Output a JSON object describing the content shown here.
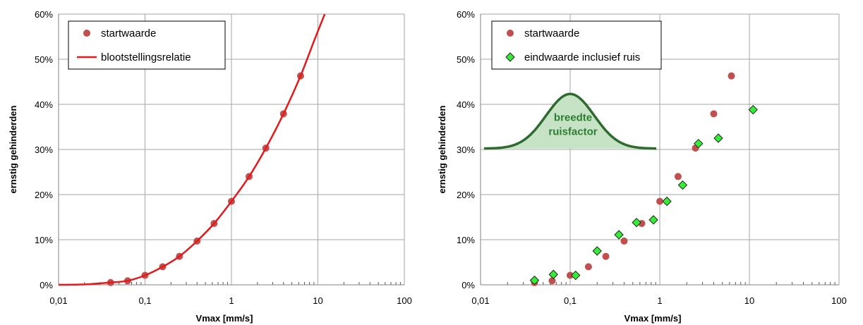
{
  "colors": {
    "startwaarde": "#c0504d",
    "curve": "#e31a1c",
    "eindwaarde": "#33ee33",
    "grid": "#a6a6a6",
    "bell_fill": "#c6e3c6",
    "bell_stroke": "#2e6b2e"
  },
  "chart_data": [
    {
      "type": "scatter",
      "xscale": "log",
      "xlim": [
        0.01,
        100
      ],
      "ylim": [
        0,
        0.6
      ],
      "xlabel": "Vmax [mm/s]",
      "ylabel": "ernstig gehinderden",
      "x_ticks": [
        "0,01",
        "0,1",
        "1",
        "10",
        "100"
      ],
      "y_ticks": [
        "0%",
        "10%",
        "20%",
        "30%",
        "40%",
        "50%",
        "60%"
      ],
      "grid": true,
      "legend_position": "top-left",
      "legend": [
        "startwaarde",
        "blootstellingsrelatie"
      ],
      "series": [
        {
          "name": "startwaarde",
          "marker": "circle",
          "points": [
            {
              "x": 0.04,
              "y": 0.005
            },
            {
              "x": 0.063,
              "y": 0.009
            },
            {
              "x": 0.1,
              "y": 0.021
            },
            {
              "x": 0.16,
              "y": 0.04
            },
            {
              "x": 0.25,
              "y": 0.063
            },
            {
              "x": 0.4,
              "y": 0.097
            },
            {
              "x": 0.63,
              "y": 0.136
            },
            {
              "x": 1.0,
              "y": 0.185
            },
            {
              "x": 1.6,
              "y": 0.24
            },
            {
              "x": 2.5,
              "y": 0.303
            },
            {
              "x": 4.0,
              "y": 0.379
            },
            {
              "x": 6.3,
              "y": 0.463
            }
          ]
        },
        {
          "name": "blootstellingsrelatie",
          "marker": "line",
          "points": [
            {
              "x": 0.01,
              "y": 0.0
            },
            {
              "x": 0.02,
              "y": 0.001
            },
            {
              "x": 0.04,
              "y": 0.005
            },
            {
              "x": 0.063,
              "y": 0.009
            },
            {
              "x": 0.1,
              "y": 0.021
            },
            {
              "x": 0.16,
              "y": 0.04
            },
            {
              "x": 0.25,
              "y": 0.063
            },
            {
              "x": 0.4,
              "y": 0.097
            },
            {
              "x": 0.63,
              "y": 0.136
            },
            {
              "x": 1.0,
              "y": 0.185
            },
            {
              "x": 1.6,
              "y": 0.24
            },
            {
              "x": 2.5,
              "y": 0.303
            },
            {
              "x": 4.0,
              "y": 0.379
            },
            {
              "x": 6.3,
              "y": 0.463
            },
            {
              "x": 9.0,
              "y": 0.54
            },
            {
              "x": 12.0,
              "y": 0.6
            }
          ]
        }
      ]
    },
    {
      "type": "scatter",
      "xscale": "log",
      "xlim": [
        0.01,
        100
      ],
      "ylim": [
        0,
        0.6
      ],
      "xlabel": "Vmax [mm/s]",
      "ylabel": "ernstig gehinderden",
      "x_ticks": [
        "0,01",
        "0,1",
        "1",
        "10",
        "100"
      ],
      "y_ticks": [
        "0%",
        "10%",
        "20%",
        "30%",
        "40%",
        "50%",
        "60%"
      ],
      "grid": true,
      "legend_position": "top-left",
      "legend": [
        "startwaarde",
        "eindwaarde inclusief ruis"
      ],
      "annotation": {
        "lines": [
          "breedte",
          "ruisfactor"
        ],
        "center_x": 0.1,
        "base_y": 0.302,
        "peak_y": 0.423
      },
      "series": [
        {
          "name": "startwaarde",
          "marker": "circle",
          "points": [
            {
              "x": 0.04,
              "y": 0.005
            },
            {
              "x": 0.063,
              "y": 0.009
            },
            {
              "x": 0.1,
              "y": 0.021
            },
            {
              "x": 0.16,
              "y": 0.04
            },
            {
              "x": 0.25,
              "y": 0.063
            },
            {
              "x": 0.4,
              "y": 0.097
            },
            {
              "x": 0.63,
              "y": 0.136
            },
            {
              "x": 1.0,
              "y": 0.185
            },
            {
              "x": 1.6,
              "y": 0.24
            },
            {
              "x": 2.5,
              "y": 0.303
            },
            {
              "x": 4.0,
              "y": 0.379
            },
            {
              "x": 6.3,
              "y": 0.463
            }
          ]
        },
        {
          "name": "eindwaarde inclusief ruis",
          "marker": "diamond",
          "points": [
            {
              "x": 0.04,
              "y": 0.01
            },
            {
              "x": 0.065,
              "y": 0.023
            },
            {
              "x": 0.115,
              "y": 0.021
            },
            {
              "x": 0.2,
              "y": 0.075
            },
            {
              "x": 0.35,
              "y": 0.111
            },
            {
              "x": 0.55,
              "y": 0.138
            },
            {
              "x": 0.85,
              "y": 0.144
            },
            {
              "x": 1.2,
              "y": 0.185
            },
            {
              "x": 1.8,
              "y": 0.221
            },
            {
              "x": 2.7,
              "y": 0.313
            },
            {
              "x": 4.5,
              "y": 0.325
            },
            {
              "x": 11.0,
              "y": 0.388
            }
          ]
        }
      ]
    }
  ]
}
